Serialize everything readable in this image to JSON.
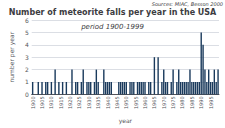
{
  "chart_data": {
    "type": "bar",
    "title": "Number of meteorite falls per year in the USA",
    "subtitle": "period 1900-1999",
    "annotations": [
      "Sources: MIAC, Besson 2000"
    ],
    "xlabel": "year",
    "ylabel": "number per year",
    "categories": [
      "1900",
      null,
      null,
      null,
      null,
      "1905",
      null,
      null,
      null,
      null,
      "1910",
      null,
      null,
      null,
      null,
      "1915",
      null,
      null,
      null,
      null,
      "1920",
      null,
      null,
      null,
      null,
      "1925",
      null,
      null,
      null,
      null,
      "1930",
      null,
      null,
      null,
      null,
      "1935",
      null,
      null,
      null,
      null,
      "1940",
      null,
      null,
      null,
      null,
      "1945",
      null,
      null,
      null,
      null,
      "1950",
      null,
      null,
      null,
      null,
      "1955",
      null,
      null,
      null,
      null,
      "1960",
      null,
      null,
      null,
      null,
      "1965",
      null,
      null,
      null,
      null,
      "1970",
      null,
      null,
      null,
      null,
      "1975",
      null,
      null,
      null,
      null,
      "1980",
      null,
      null,
      null,
      null,
      "1985",
      null,
      null,
      null,
      null,
      "1990",
      null,
      null,
      null,
      null,
      "1995",
      null,
      null,
      null,
      null
    ],
    "values": [
      1,
      0,
      0,
      1,
      0,
      1,
      0,
      1,
      1,
      0,
      1,
      0,
      2,
      0,
      1,
      0,
      1,
      0,
      1,
      0,
      0,
      2,
      0,
      1,
      1,
      0,
      1,
      2,
      0,
      1,
      1,
      1,
      0,
      1,
      2,
      1,
      0,
      0,
      2,
      1,
      1,
      1,
      1,
      0,
      0,
      0,
      1,
      1,
      1,
      1,
      1,
      0,
      1,
      1,
      1,
      0,
      1,
      1,
      1,
      1,
      1,
      0,
      1,
      1,
      0,
      3,
      0,
      3,
      0,
      1,
      2,
      1,
      1,
      0,
      1,
      2,
      0,
      1,
      2,
      1,
      1,
      1,
      1,
      1,
      2,
      1,
      1,
      1,
      1,
      1,
      5,
      4,
      2,
      1,
      2,
      1,
      1,
      2,
      1,
      2
    ],
    "color": "#1a3a5c",
    "ylim": [
      0,
      6
    ],
    "yticks": [
      0,
      1,
      2,
      3,
      4,
      5,
      6
    ],
    "grid": true
  }
}
